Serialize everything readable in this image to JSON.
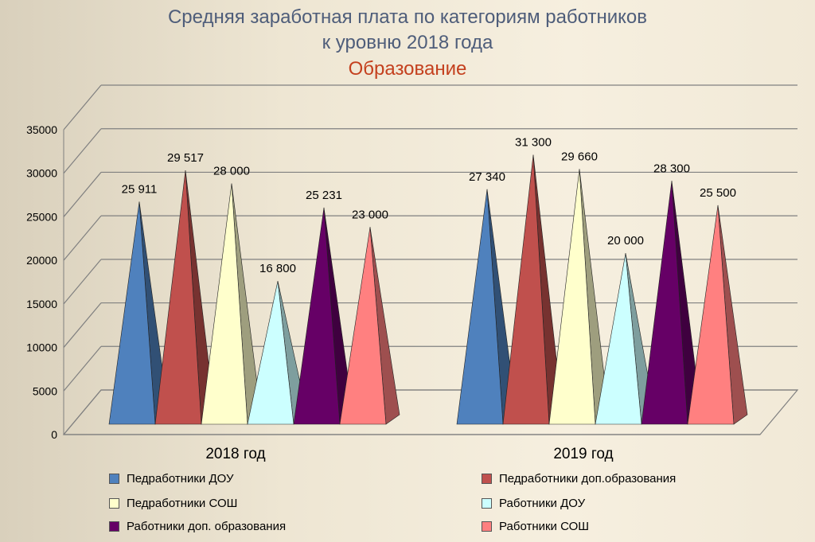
{
  "title": {
    "line1": "Средняя заработная плата по категориям работников",
    "line2": "к уровню 2018 года",
    "line3": "Образование"
  },
  "chart_data": {
    "type": "bar",
    "bar_shape": "pyramid-3d",
    "categories": [
      "2018 год",
      "2019 год"
    ],
    "ylim": [
      0,
      35000
    ],
    "yticks": [
      "0",
      "5000",
      "10000",
      "15000",
      "20000",
      "25000",
      "30000",
      "35000"
    ],
    "grid": true,
    "legend_position": "bottom",
    "series": [
      {
        "name": "Педработники ДОУ",
        "color": "#4f81bd",
        "values": [
          25911,
          27340
        ],
        "labels": [
          "25 911",
          "27 340"
        ]
      },
      {
        "name": "Педработники доп.образования",
        "color": "#c0504d",
        "values": [
          29517,
          31300
        ],
        "labels": [
          "29 517",
          "31 300"
        ]
      },
      {
        "name": "Педработники СОШ",
        "color": "#ffffcc",
        "values": [
          28000,
          29660
        ],
        "labels": [
          "28 000",
          "29 660"
        ]
      },
      {
        "name": "Работники ДОУ",
        "color": "#ccffff",
        "values": [
          16800,
          20000
        ],
        "labels": [
          "16 800",
          "20 000"
        ]
      },
      {
        "name": "Работники доп. образования",
        "color": "#660066",
        "values": [
          25231,
          28300
        ],
        "labels": [
          "25 231",
          "28 300"
        ]
      },
      {
        "name": "Работники СОШ",
        "color": "#ff8080",
        "values": [
          23000,
          25500
        ],
        "labels": [
          "23 000",
          "25 500"
        ]
      }
    ]
  }
}
